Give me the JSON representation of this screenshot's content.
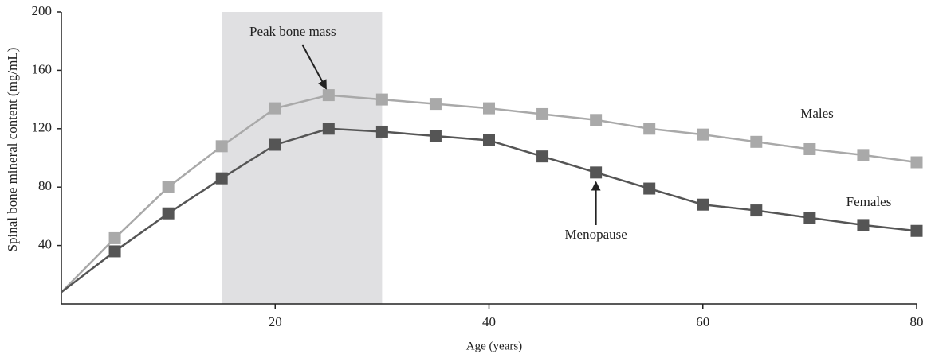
{
  "chart_data": {
    "type": "line",
    "x_label": "Age (years)",
    "y_label": "Spinal bone mineral content (mg/mL)",
    "x": [
      0,
      5,
      10,
      15,
      20,
      25,
      30,
      35,
      40,
      45,
      50,
      55,
      60,
      65,
      70,
      75,
      80
    ],
    "series": [
      {
        "name": "Males",
        "color": "#a9a9a9",
        "values": [
          8,
          45,
          80,
          108,
          134,
          143,
          140,
          137,
          134,
          130,
          126,
          120,
          116,
          111,
          106,
          102,
          97
        ]
      },
      {
        "name": "Females",
        "color": "#555555",
        "values": [
          8,
          36,
          62,
          86,
          109,
          120,
          118,
          115,
          112,
          101,
          90,
          79,
          68,
          64,
          59,
          54,
          50
        ]
      }
    ],
    "xlim": [
      0,
      80
    ],
    "xticks": [
      20,
      40,
      60,
      80
    ],
    "ylim": [
      0,
      200
    ],
    "yticks": [
      40,
      80,
      120,
      160,
      200
    ],
    "shaded_region": [
      15,
      30
    ],
    "annotations": [
      {
        "text": "Peak bone mass",
        "x": 25,
        "y": 143
      },
      {
        "text": "Menopause",
        "x": 50,
        "y": 90
      }
    ]
  }
}
